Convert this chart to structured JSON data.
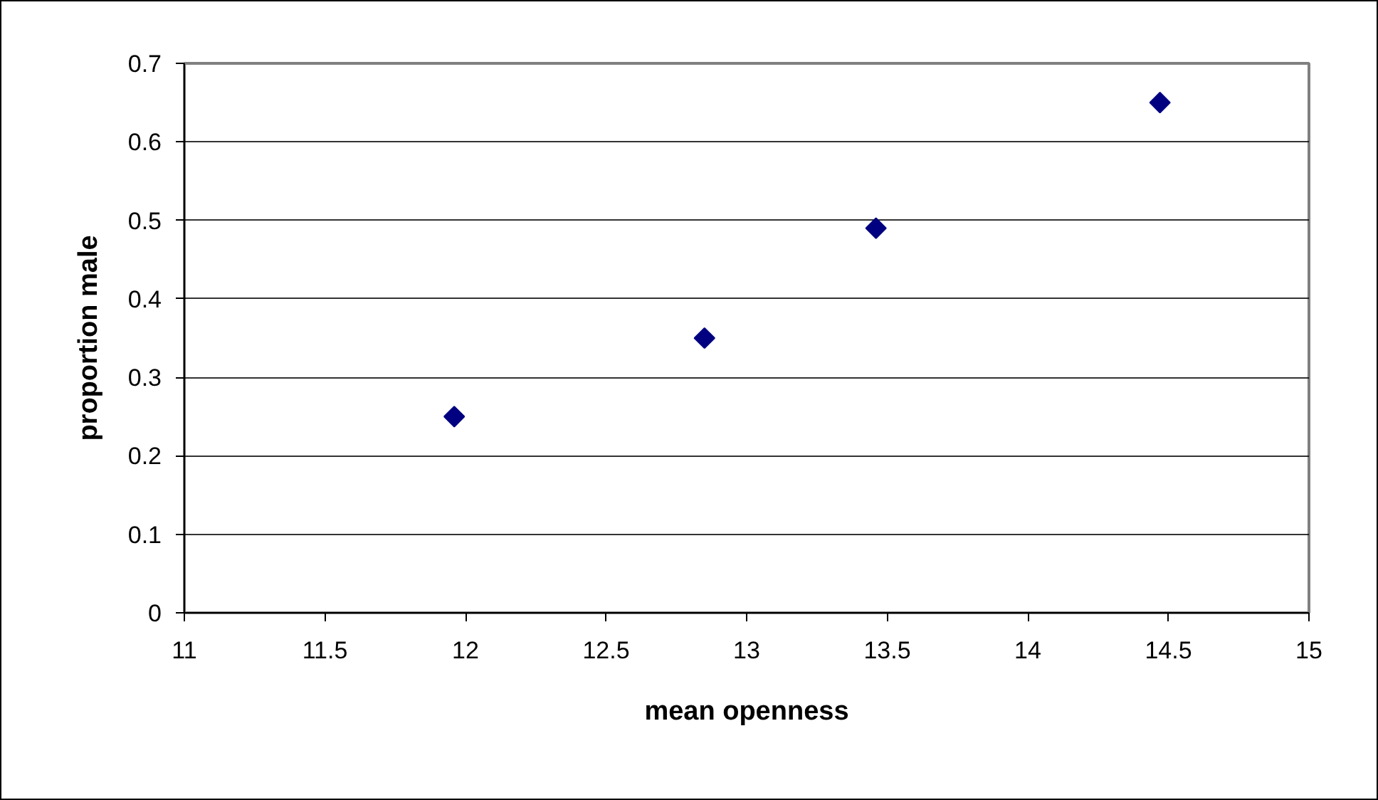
{
  "chart_data": {
    "type": "scatter",
    "xlabel": "mean openness",
    "ylabel": "proportion male",
    "x": [
      11.96,
      12.85,
      13.46,
      14.47
    ],
    "values": [
      0.25,
      0.35,
      0.49,
      0.65
    ],
    "color": "#000080",
    "marker": "diamond",
    "xlim": [
      11,
      15
    ],
    "ylim": [
      0,
      0.7
    ],
    "xticks": [
      11,
      11.5,
      12,
      12.5,
      13,
      13.5,
      14,
      14.5,
      15
    ],
    "yticks": [
      0,
      0.1,
      0.2,
      0.3,
      0.4,
      0.5,
      0.6,
      0.7
    ],
    "grid": "y"
  }
}
